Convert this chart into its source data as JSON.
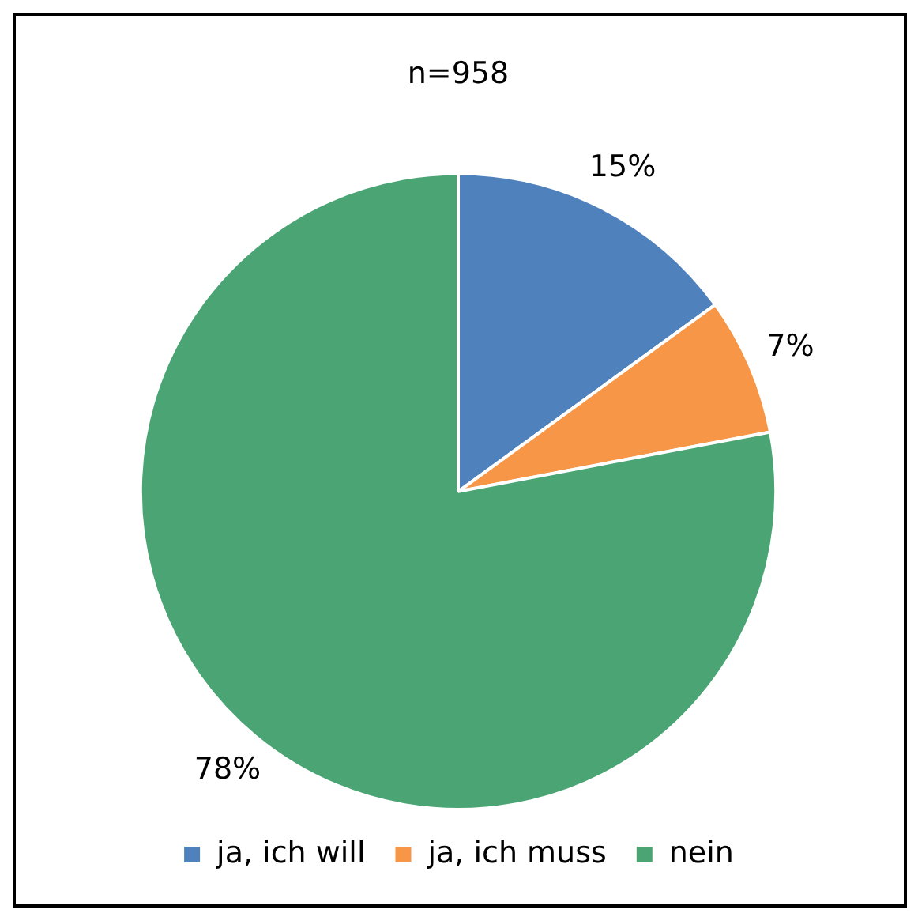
{
  "chart_data": {
    "type": "pie",
    "title": "n=958",
    "categories": [
      "ja, ich will",
      "ja, ich muss",
      "nein"
    ],
    "values": [
      15,
      7,
      78
    ],
    "colors": [
      "#4f81bd",
      "#f79646",
      "#4ba474"
    ],
    "value_labels": [
      "15%",
      "7%",
      "78%"
    ],
    "legend": "bottom"
  }
}
